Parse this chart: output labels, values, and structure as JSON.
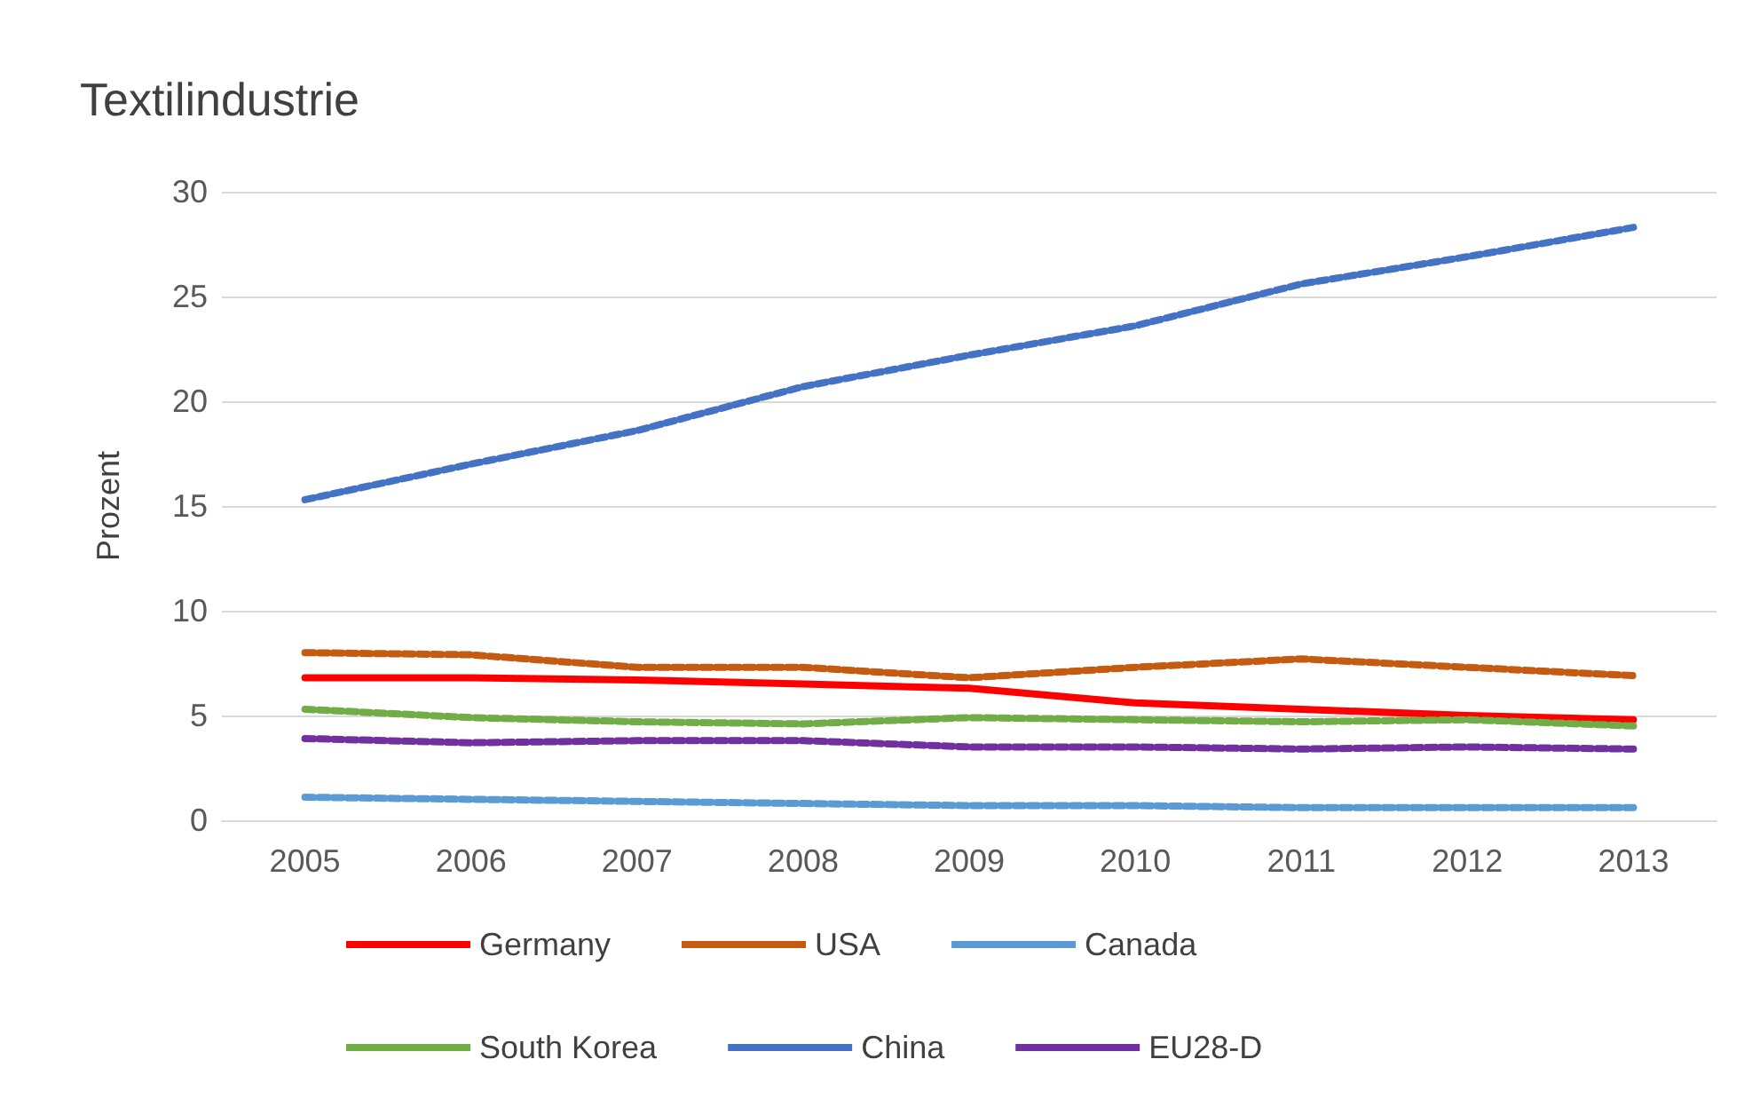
{
  "chart_data": {
    "type": "line",
    "title": "Textilindustrie",
    "ylabel": "Prozent",
    "categories": [
      "2005",
      "2006",
      "2007",
      "2008",
      "2009",
      "2010",
      "2011",
      "2012",
      "2013"
    ],
    "series": [
      {
        "name": "Germany",
        "color": "#ff0000",
        "line_style": "solid",
        "values": [
          6.8,
          6.8,
          6.7,
          6.5,
          6.3,
          5.6,
          5.3,
          5.0,
          4.8
        ]
      },
      {
        "name": "USA",
        "color": "#c55a11",
        "values": [
          8.0,
          7.9,
          7.3,
          7.3,
          6.8,
          7.3,
          7.7,
          7.3,
          6.9
        ]
      },
      {
        "name": "Canada",
        "color": "#5b9bd5",
        "values": [
          1.1,
          1.0,
          0.9,
          0.8,
          0.7,
          0.7,
          0.6,
          0.6,
          0.6
        ]
      },
      {
        "name": "South Korea",
        "color": "#70ad47",
        "values": [
          5.3,
          4.9,
          4.7,
          4.6,
          4.9,
          4.8,
          4.7,
          4.8,
          4.5
        ]
      },
      {
        "name": "China",
        "color": "#4472c4",
        "values": [
          15.3,
          17.0,
          18.6,
          20.7,
          22.2,
          23.6,
          25.6,
          26.9,
          28.3
        ]
      },
      {
        "name": "EU28-D",
        "color": "#7030a0",
        "values": [
          3.9,
          3.7,
          3.8,
          3.8,
          3.5,
          3.5,
          3.4,
          3.5,
          3.4
        ]
      }
    ],
    "ylim": [
      0,
      30
    ],
    "yticks": [
      0,
      5,
      10,
      15,
      20,
      25,
      30
    ],
    "grid": "y",
    "legend": "bottom",
    "line_style": "dashed",
    "marker": "none"
  }
}
